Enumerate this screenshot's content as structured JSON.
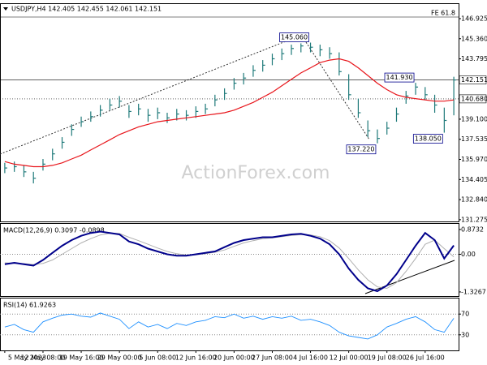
{
  "chart_data": [
    {
      "type": "ohlc",
      "title": "USDJPY,H4  142.405 142.455 142.061 142.151",
      "watermark": "ActionForex.com",
      "categories": [
        "5 May 2023",
        null,
        null,
        null,
        "12 May 08:00",
        null,
        null,
        null,
        "19 May 16:00",
        null,
        null,
        null,
        "29 May 00:00",
        null,
        null,
        null,
        "5 Jun 08:00",
        null,
        null,
        null,
        "12 Jun 16:00",
        null,
        null,
        null,
        "20 Jun 00:00",
        null,
        null,
        null,
        "27 Jun 08:00",
        null,
        null,
        null,
        "4 Jul 16:00",
        null,
        null,
        null,
        "12 Jul 00:00",
        null,
        null,
        null,
        "19 Jul 08:00",
        null,
        null,
        null,
        "26 Jul 16:00",
        null,
        null,
        null
      ],
      "high": [
        135.7,
        135.8,
        135.5,
        135.0,
        136.0,
        136.8,
        137.7,
        138.7,
        139.3,
        139.7,
        140.2,
        140.7,
        140.9,
        140.2,
        140.3,
        139.9,
        140.0,
        139.6,
        139.9,
        139.8,
        140.1,
        140.3,
        141.0,
        141.5,
        142.3,
        142.7,
        143.3,
        143.7,
        144.2,
        144.6,
        144.9,
        145.0,
        145.06,
        144.9,
        144.7,
        144.3,
        142.6,
        140.7,
        139.0,
        138.3,
        138.9,
        140.0,
        141.3,
        141.93,
        141.6,
        141.0,
        140.0,
        142.4
      ],
      "low": [
        134.9,
        135.0,
        134.6,
        134.1,
        135.1,
        135.9,
        136.8,
        137.8,
        138.5,
        138.9,
        139.3,
        139.8,
        140.0,
        139.2,
        139.4,
        138.9,
        139.1,
        138.8,
        139.0,
        139.0,
        139.2,
        139.5,
        140.1,
        140.6,
        141.4,
        141.8,
        142.4,
        142.8,
        143.3,
        143.7,
        144.1,
        144.3,
        144.3,
        144.0,
        143.8,
        142.5,
        140.6,
        139.2,
        137.7,
        137.22,
        137.9,
        138.9,
        140.3,
        141.0,
        140.6,
        139.6,
        138.05,
        139.4
      ],
      "close": [
        135.3,
        135.4,
        135.0,
        134.5,
        135.6,
        136.4,
        137.3,
        138.3,
        138.9,
        139.3,
        139.8,
        140.2,
        140.5,
        139.7,
        139.9,
        139.4,
        139.6,
        139.2,
        139.5,
        139.4,
        139.7,
        139.9,
        140.6,
        141.1,
        141.9,
        142.3,
        142.9,
        143.3,
        143.8,
        144.2,
        144.6,
        144.8,
        144.7,
        144.5,
        144.2,
        142.8,
        141.0,
        139.6,
        138.2,
        137.6,
        138.4,
        139.5,
        140.9,
        141.6,
        141.0,
        140.2,
        139.0,
        142.151
      ],
      "color": "#1f7a7a",
      "ma": {
        "color": "#e8151b",
        "values": [
          135.8,
          135.6,
          135.5,
          135.4,
          135.4,
          135.5,
          135.7,
          136.0,
          136.3,
          136.7,
          137.1,
          137.5,
          137.9,
          138.2,
          138.5,
          138.7,
          138.9,
          139.0,
          139.1,
          139.2,
          139.3,
          139.4,
          139.5,
          139.6,
          139.8,
          140.1,
          140.4,
          140.8,
          141.2,
          141.7,
          142.2,
          142.7,
          143.1,
          143.5,
          143.7,
          143.8,
          143.6,
          143.1,
          142.5,
          141.9,
          141.4,
          141.0,
          140.8,
          140.7,
          140.6,
          140.5,
          140.5,
          140.6
        ]
      },
      "annotations": [
        {
          "label": "145.060",
          "value": 145.06,
          "index": 32,
          "side": "above"
        },
        {
          "label": "137.220",
          "value": 137.22,
          "index": 39,
          "side": "below"
        },
        {
          "label": "141.930",
          "value": 141.93,
          "index": 43,
          "side": "above"
        },
        {
          "label": "138.050",
          "value": 138.05,
          "index": 46,
          "side": "below"
        }
      ],
      "levels": [
        {
          "value": 142.151,
          "label": "142.151",
          "style": "solid"
        },
        {
          "value": 140.68,
          "label": "140.680",
          "style": "dotted"
        }
      ],
      "fe_level": {
        "value": 147.05,
        "label": "FE 61.8"
      },
      "ylim": [
        131.14,
        148.06
      ],
      "yticks": [
        {
          "value": 146.925,
          "label": "146.925"
        },
        {
          "value": 145.36,
          "label": "145.360"
        },
        {
          "value": 143.795,
          "label": "143.795"
        },
        {
          "value": 139.1,
          "label": "139.100"
        },
        {
          "value": 137.535,
          "label": "137.535"
        },
        {
          "value": 135.97,
          "label": "135.970"
        },
        {
          "value": 134.405,
          "label": "134.405"
        },
        {
          "value": 132.84,
          "label": "132.840"
        },
        {
          "value": 131.275,
          "label": "131.275"
        }
      ]
    },
    {
      "type": "macd",
      "title": "MACD(12,26,9) 0.3097 -0.0898",
      "macd": {
        "color": "#00008b",
        "values": [
          -0.35,
          -0.3,
          -0.35,
          -0.4,
          -0.2,
          0.05,
          0.3,
          0.5,
          0.65,
          0.75,
          0.8,
          0.75,
          0.7,
          0.45,
          0.35,
          0.2,
          0.1,
          0.0,
          -0.05,
          -0.05,
          0.0,
          0.05,
          0.1,
          0.25,
          0.4,
          0.5,
          0.55,
          0.6,
          0.6,
          0.65,
          0.7,
          0.72,
          0.65,
          0.55,
          0.35,
          0.0,
          -0.5,
          -0.9,
          -1.2,
          -1.3,
          -1.1,
          -0.7,
          -0.2,
          0.3,
          0.75,
          0.5,
          -0.15,
          0.3097
        ]
      },
      "signal": {
        "color": "#b0b0b0",
        "values": [
          -0.3,
          -0.32,
          -0.33,
          -0.36,
          -0.32,
          -0.2,
          0.0,
          0.2,
          0.4,
          0.55,
          0.68,
          0.74,
          0.73,
          0.6,
          0.48,
          0.35,
          0.22,
          0.1,
          0.02,
          -0.03,
          -0.02,
          0.02,
          0.07,
          0.15,
          0.28,
          0.4,
          0.48,
          0.55,
          0.58,
          0.62,
          0.66,
          0.69,
          0.68,
          0.62,
          0.48,
          0.22,
          -0.15,
          -0.55,
          -0.9,
          -1.15,
          -1.2,
          -1.0,
          -0.6,
          -0.15,
          0.35,
          0.5,
          0.2,
          -0.0898
        ]
      },
      "ylim": [
        -1.5,
        1.07
      ],
      "yticks": [
        {
          "value": 0.8732,
          "label": "0.8732"
        },
        {
          "value": 0,
          "label": "0.00"
        },
        {
          "value": -1.3267,
          "label": "-1.3267"
        }
      ]
    },
    {
      "type": "line",
      "title": "RSI(14) 61.9263",
      "values": [
        45,
        50,
        40,
        35,
        55,
        62,
        68,
        70,
        66,
        64,
        72,
        66,
        60,
        42,
        55,
        45,
        50,
        42,
        52,
        48,
        55,
        58,
        65,
        63,
        70,
        62,
        66,
        60,
        65,
        62,
        66,
        58,
        60,
        55,
        48,
        35,
        28,
        25,
        22,
        30,
        45,
        52,
        60,
        65,
        55,
        40,
        35,
        61.9263
      ],
      "color": "#1e90ff",
      "ylim": [
        0,
        100
      ],
      "yticks": [
        70,
        30
      ]
    }
  ]
}
